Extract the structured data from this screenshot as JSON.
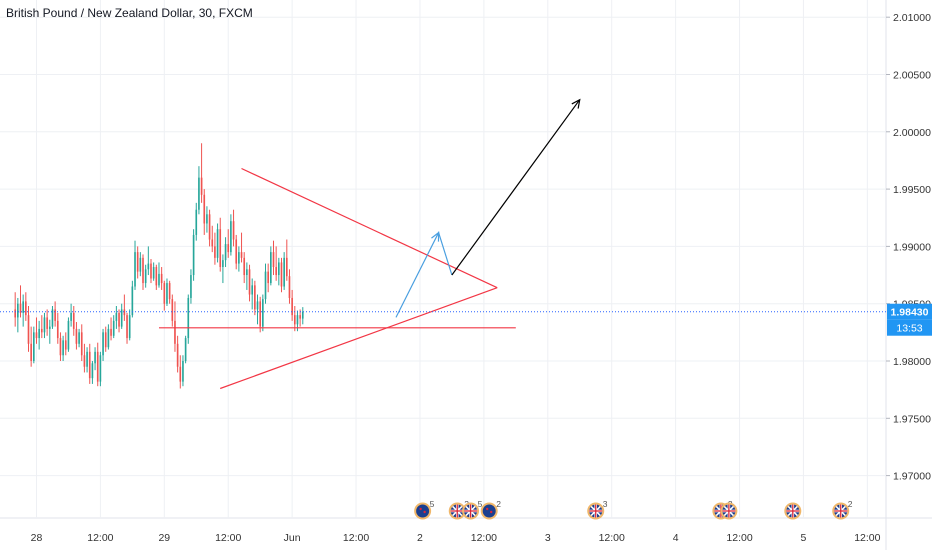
{
  "title": "British Pound / New Zealand Dollar, 30, FXCM",
  "colors": {
    "up": "#26a69a",
    "down": "#ef5350",
    "triangle": "#f23645",
    "forecast_blue": "#4a9fe0",
    "arrow": "#000000",
    "price_line": "#2962ff",
    "price_label_bg": "#2196f3",
    "grid": "#eef0f4",
    "axis_text": "#333333"
  },
  "price_label": "1.98430",
  "countdown_label": "13:53",
  "chart_data": {
    "type": "candlestick",
    "y_ticks": [
      "2.01000",
      "2.00500",
      "2.00000",
      "1.99500",
      "1.99000",
      "1.98500",
      "1.98000",
      "1.97500",
      "1.97000"
    ],
    "y_tick_values": [
      2.01,
      2.005,
      2.0,
      1.995,
      1.99,
      1.985,
      1.98,
      1.975,
      1.97
    ],
    "ylim": [
      1.9663,
      2.0115
    ],
    "x_ticks": [
      "28",
      "12:00",
      "29",
      "12:00",
      "Jun",
      "12:00",
      "2",
      "12:00",
      "3",
      "12:00",
      "4",
      "12:00",
      "5",
      "12:00"
    ],
    "x_tick_bars": [
      8,
      32,
      56,
      80,
      104,
      128,
      152,
      176,
      200,
      224,
      248,
      272,
      296,
      320
    ],
    "xlim": [
      -5.7,
      327
    ],
    "last_price": 1.9843,
    "ohlc": [
      [
        1.9845,
        1.986,
        1.983,
        1.9838
      ],
      [
        1.9838,
        1.9855,
        1.9825,
        1.985
      ],
      [
        1.985,
        1.9866,
        1.9838,
        1.9842
      ],
      [
        1.9842,
        1.9858,
        1.983,
        1.9852
      ],
      [
        1.9852,
        1.986,
        1.9835,
        1.984
      ],
      [
        1.984,
        1.9848,
        1.9808,
        1.9815
      ],
      [
        1.9815,
        1.983,
        1.9795,
        1.98
      ],
      [
        1.98,
        1.983,
        1.9798,
        1.9825
      ],
      [
        1.9825,
        1.9838,
        1.9815,
        1.982
      ],
      [
        1.982,
        1.9835,
        1.981,
        1.9828
      ],
      [
        1.9828,
        1.984,
        1.982,
        1.9825
      ],
      [
        1.9825,
        1.9842,
        1.982,
        1.9838
      ],
      [
        1.9838,
        1.9845,
        1.9822,
        1.9828
      ],
      [
        1.9828,
        1.9836,
        1.9815,
        1.983
      ],
      [
        1.983,
        1.9848,
        1.9828,
        1.9845
      ],
      [
        1.9845,
        1.9852,
        1.983,
        1.9835
      ],
      [
        1.9835,
        1.9842,
        1.9815,
        1.982
      ],
      [
        1.982,
        1.9825,
        1.98,
        1.9805
      ],
      [
        1.9805,
        1.9822,
        1.98,
        1.9818
      ],
      [
        1.9818,
        1.9825,
        1.9805,
        1.981
      ],
      [
        1.981,
        1.9838,
        1.9808,
        1.9835
      ],
      [
        1.9835,
        1.985,
        1.983,
        1.9842
      ],
      [
        1.9842,
        1.9848,
        1.9822,
        1.9828
      ],
      [
        1.9828,
        1.9834,
        1.981,
        1.9815
      ],
      [
        1.9815,
        1.9828,
        1.9812,
        1.9825
      ],
      [
        1.9825,
        1.9832,
        1.98,
        1.9805
      ],
      [
        1.9805,
        1.9815,
        1.979,
        1.9795
      ],
      [
        1.9795,
        1.9812,
        1.979,
        1.9808
      ],
      [
        1.9808,
        1.9815,
        1.978,
        1.9785
      ],
      [
        1.9785,
        1.98,
        1.978,
        1.9798
      ],
      [
        1.9798,
        1.9812,
        1.9792,
        1.9808
      ],
      [
        1.9808,
        1.9816,
        1.9778,
        1.9782
      ],
      [
        1.9782,
        1.9808,
        1.9778,
        1.9805
      ],
      [
        1.9805,
        1.9828,
        1.98,
        1.9825
      ],
      [
        1.9825,
        1.983,
        1.9808,
        1.9812
      ],
      [
        1.9812,
        1.9832,
        1.981,
        1.9828
      ],
      [
        1.9828,
        1.9838,
        1.9818,
        1.9822
      ],
      [
        1.9822,
        1.984,
        1.982,
        1.9835
      ],
      [
        1.9835,
        1.9848,
        1.9828,
        1.9842
      ],
      [
        1.9842,
        1.9845,
        1.9825,
        1.983
      ],
      [
        1.983,
        1.985,
        1.9828,
        1.9845
      ],
      [
        1.9845,
        1.9858,
        1.9835,
        1.984
      ],
      [
        1.984,
        1.9842,
        1.9815,
        1.982
      ],
      [
        1.982,
        1.9845,
        1.9818,
        1.984
      ],
      [
        1.984,
        1.987,
        1.9838,
        1.9865
      ],
      [
        1.9865,
        1.9905,
        1.9862,
        1.9895
      ],
      [
        1.9895,
        1.99,
        1.9872,
        1.9878
      ],
      [
        1.9878,
        1.9895,
        1.9874,
        1.989
      ],
      [
        1.989,
        1.9893,
        1.9862,
        1.9868
      ],
      [
        1.9868,
        1.9884,
        1.9864,
        1.988
      ],
      [
        1.988,
        1.99,
        1.9875,
        1.9885
      ],
      [
        1.9885,
        1.9889,
        1.9868,
        1.9872
      ],
      [
        1.9872,
        1.9886,
        1.987,
        1.9882
      ],
      [
        1.9882,
        1.9884,
        1.9862,
        1.9866
      ],
      [
        1.9866,
        1.9886,
        1.9864,
        1.9876
      ],
      [
        1.9876,
        1.9882,
        1.9862,
        1.9868
      ],
      [
        1.9868,
        1.987,
        1.9844,
        1.985
      ],
      [
        1.985,
        1.9872,
        1.9848,
        1.9868
      ],
      [
        1.9868,
        1.987,
        1.985,
        1.9854
      ],
      [
        1.9854,
        1.9858,
        1.983,
        1.9835
      ],
      [
        1.9835,
        1.9852,
        1.9808,
        1.9815
      ],
      [
        1.9815,
        1.9822,
        1.979,
        1.9795
      ],
      [
        1.9795,
        1.9805,
        1.9776,
        1.9782
      ],
      [
        1.9782,
        1.9805,
        1.9778,
        1.98
      ],
      [
        1.98,
        1.9822,
        1.9798,
        1.982
      ],
      [
        1.982,
        1.9858,
        1.9815,
        1.9855
      ],
      [
        1.9855,
        1.988,
        1.985,
        1.9875
      ],
      [
        1.9875,
        1.9915,
        1.987,
        1.991
      ],
      [
        1.991,
        1.9938,
        1.9905,
        1.9932
      ],
      [
        1.9932,
        1.997,
        1.9928,
        1.996
      ],
      [
        1.996,
        1.999,
        1.9938,
        1.9945
      ],
      [
        1.9945,
        1.995,
        1.991,
        1.992
      ],
      [
        1.992,
        1.9935,
        1.9912,
        1.9928
      ],
      [
        1.9928,
        1.9932,
        1.99,
        1.9906
      ],
      [
        1.9906,
        1.9918,
        1.9895,
        1.99
      ],
      [
        1.99,
        1.9912,
        1.9884,
        1.989
      ],
      [
        1.989,
        1.992,
        1.9886,
        1.9915
      ],
      [
        1.9915,
        1.9925,
        1.9878,
        1.9882
      ],
      [
        1.9882,
        1.9893,
        1.9868,
        1.9888
      ],
      [
        1.9888,
        1.9908,
        1.9882,
        1.9902
      ],
      [
        1.9902,
        1.9915,
        1.989,
        1.9895
      ],
      [
        1.9895,
        1.9928,
        1.9892,
        1.9922
      ],
      [
        1.9922,
        1.9932,
        1.99,
        1.9906
      ],
      [
        1.9906,
        1.991,
        1.988,
        1.9885
      ],
      [
        1.9885,
        1.99,
        1.9878,
        1.9895
      ],
      [
        1.9895,
        1.9912,
        1.9886,
        1.989
      ],
      [
        1.989,
        1.9895,
        1.9868,
        1.9875
      ],
      [
        1.9875,
        1.9886,
        1.9862,
        1.988
      ],
      [
        1.988,
        1.9884,
        1.9852,
        1.9858
      ],
      [
        1.9858,
        1.9872,
        1.9845,
        1.9866
      ],
      [
        1.9866,
        1.987,
        1.984,
        1.9845
      ],
      [
        1.9845,
        1.9858,
        1.9832,
        1.9852
      ],
      [
        1.9852,
        1.9856,
        1.9825,
        1.983
      ],
      [
        1.983,
        1.9858,
        1.9826,
        1.9854
      ],
      [
        1.9854,
        1.9885,
        1.985,
        1.9878
      ],
      [
        1.9878,
        1.9885,
        1.986,
        1.9868
      ],
      [
        1.9868,
        1.99,
        1.9866,
        1.9895
      ],
      [
        1.9895,
        1.9905,
        1.9875,
        1.9882
      ],
      [
        1.9882,
        1.99,
        1.987,
        1.9875
      ],
      [
        1.9875,
        1.989,
        1.9866,
        1.9886
      ],
      [
        1.9886,
        1.989,
        1.986,
        1.9865
      ],
      [
        1.9865,
        1.9895,
        1.9862,
        1.989
      ],
      [
        1.989,
        1.9906,
        1.987,
        1.9874
      ],
      [
        1.9874,
        1.988,
        1.985,
        1.9855
      ],
      [
        1.9855,
        1.9862,
        1.9835,
        1.984
      ],
      [
        1.984,
        1.9848,
        1.9826,
        1.9832
      ],
      [
        1.9832,
        1.9844,
        1.9826,
        1.984
      ],
      [
        1.984,
        1.9845,
        1.983,
        1.9837
      ],
      [
        1.9837,
        1.9847,
        1.9832,
        1.9843
      ]
    ],
    "drawings": {
      "triangle_upper": [
        [
          85,
          1.9968
        ],
        [
          181,
          1.9864
        ]
      ],
      "triangle_lower": [
        [
          77,
          1.9776
        ],
        [
          181,
          1.9864
        ]
      ],
      "support_line": [
        [
          54,
          1.9829
        ],
        [
          188,
          1.9829
        ]
      ],
      "forecast_blue": [
        [
          143,
          1.9838
        ],
        [
          159,
          1.9912
        ],
        [
          164,
          1.9875
        ]
      ],
      "target_arrow": [
        [
          164,
          1.9875
        ],
        [
          212,
          2.0028
        ]
      ]
    },
    "events": [
      {
        "bar": 153,
        "kind": "moon",
        "count": "5"
      },
      {
        "bar": 166,
        "kind": "flag",
        "count": "2"
      },
      {
        "bar": 171,
        "kind": "flag",
        "count": "5"
      },
      {
        "bar": 178,
        "kind": "moon",
        "count": "2"
      },
      {
        "bar": 218,
        "kind": "flag",
        "count": "3"
      },
      {
        "bar": 265,
        "kind": "flag",
        "count": "2"
      },
      {
        "bar": 268,
        "kind": "flag",
        "count": ""
      },
      {
        "bar": 292,
        "kind": "flag",
        "count": ""
      },
      {
        "bar": 310,
        "kind": "flag",
        "count": "2"
      }
    ]
  }
}
